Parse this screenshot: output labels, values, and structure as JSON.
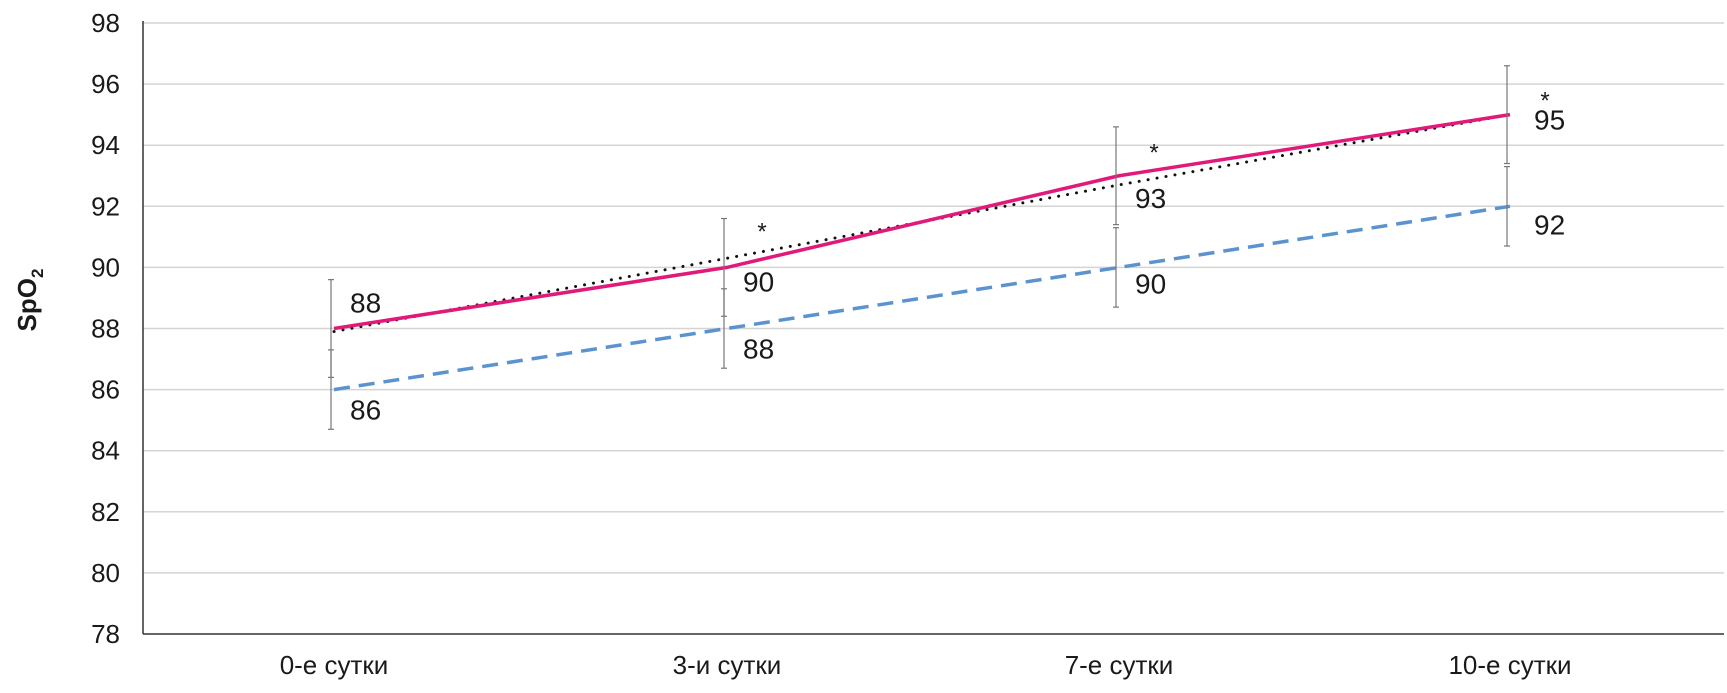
{
  "chart_data": {
    "type": "line",
    "ylabel": "SpO",
    "ylabel_subscript": "2",
    "ylim": [
      78,
      98
    ],
    "yticks": [
      78,
      80,
      82,
      84,
      86,
      88,
      90,
      92,
      94,
      96,
      98
    ],
    "categories": [
      "0-е сутки",
      "3-и сутки",
      "7-е сутки",
      "10-е сутки"
    ],
    "grid": true,
    "series": [
      {
        "style": "solid",
        "color": "#e0197a",
        "values": [
          88,
          90,
          93,
          95
        ],
        "labels": [
          "88",
          "90",
          "93",
          "95"
        ],
        "error_low": [
          1.6,
          1.6,
          1.6,
          1.6
        ],
        "error_high": [
          1.6,
          1.6,
          1.6,
          1.6
        ]
      },
      {
        "style": "dashed",
        "color": "#5b93cf",
        "values": [
          86,
          88,
          90,
          92
        ],
        "labels": [
          "86",
          "88",
          "90",
          "92"
        ],
        "error_low": [
          1.3,
          1.3,
          1.3,
          1.3
        ],
        "error_high": [
          1.3,
          1.3,
          1.3,
          1.3
        ]
      },
      {
        "style": "dotted",
        "color": "#111111",
        "values": [
          87.9,
          90.3,
          92.7,
          95.0
        ],
        "labels": []
      }
    ],
    "annotations": [
      {
        "category_index": 1,
        "y": 91.3,
        "text": "*"
      },
      {
        "category_index": 2,
        "y": 93.9,
        "text": "*"
      },
      {
        "category_index": 3,
        "y": 95.6,
        "text": "*"
      }
    ]
  }
}
